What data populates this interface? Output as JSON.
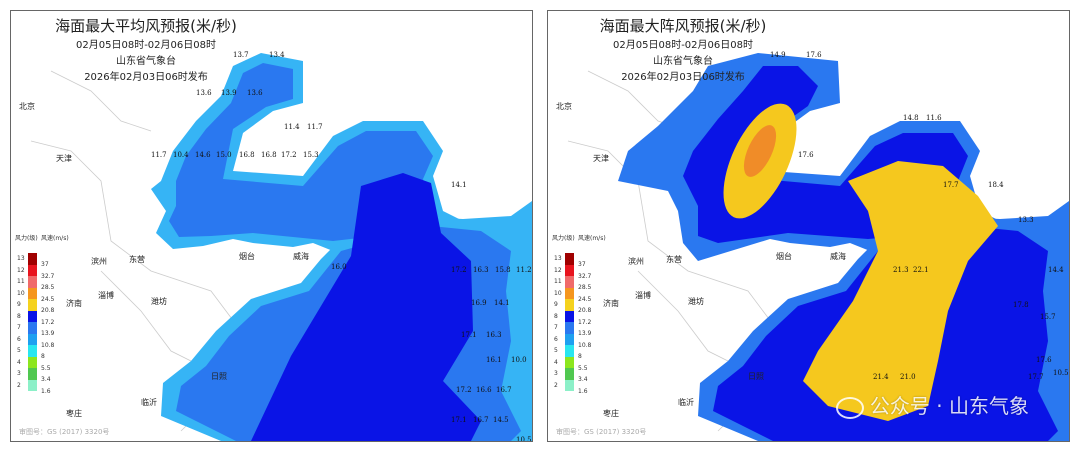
{
  "maps": [
    {
      "title": "海面最大平均风预报(米/秒)",
      "period": "02月05日08时-02月06日08时",
      "issuer": "山东省气象台",
      "issued": "2026年02月03日06时发布",
      "wind_values": [
        "13.7",
        "13.4",
        "13.6",
        "13.9",
        "13.6",
        "11.4",
        "11.7",
        "11.7",
        "10.4",
        "14.6",
        "15.0",
        "16.8",
        "16.8",
        "17.2",
        "15.3",
        "14.1",
        "16.0",
        "17.2",
        "16.3",
        "15.8",
        "11.2",
        "16.9",
        "14.1",
        "17.1",
        "16.3",
        "16.1",
        "10.0",
        "17.2",
        "16.6",
        "16.7",
        "17.1",
        "16.7",
        "14.5",
        "10.5"
      ]
    },
    {
      "title": "海面最大阵风预报(米/秒)",
      "period": "02月05日08时-02月06日08时",
      "issuer": "山东省气象台",
      "issued": "2026年02月03日06时发布",
      "wind_values": [
        "14.9",
        "17.6",
        "14.8",
        "11.6",
        "17.6",
        "18.4",
        "13.3",
        "17.7",
        "14.4",
        "21.3",
        "22.1",
        "17.8",
        "15.7",
        "17.6",
        "10.5",
        "21.4",
        "21.0",
        "17.7"
      ]
    }
  ],
  "cities": [
    "北京",
    "天津",
    "滨州",
    "东营",
    "淄博",
    "潍坊",
    "济南",
    "烟台",
    "威海",
    "日照",
    "临沂",
    "枣庄"
  ],
  "legend": {
    "header_level": "风力(级)",
    "header_speed": "风速(m/s)",
    "levels": [
      "13",
      "12",
      "11",
      "10",
      "9",
      "8",
      "7",
      "6",
      "5",
      "4",
      "3",
      "2"
    ],
    "speeds": [
      "37",
      "32.7",
      "28.5",
      "24.5",
      "20.8",
      "17.2",
      "13.9",
      "10.8",
      "8",
      "5.5",
      "3.4",
      "1.6"
    ],
    "colors": [
      "#a00000",
      "#e8141e",
      "#f06a6a",
      "#f5961e",
      "#f5d21e",
      "#0a14e6",
      "#2a78f0",
      "#1ea0f0",
      "#28e6f0",
      "#8ce61e",
      "#50c850",
      "#8cf0c8"
    ]
  },
  "footer": "审图号：GS (2017) 3320号",
  "watermark": "公众号 · 山东气象",
  "colors": {
    "sea_edge": "#36b4f5",
    "sea_mid": "#2a78f0",
    "sea_core": "#0a14e6",
    "gust_yellow": "#f5c81e",
    "gust_orange": "#f08c28"
  }
}
